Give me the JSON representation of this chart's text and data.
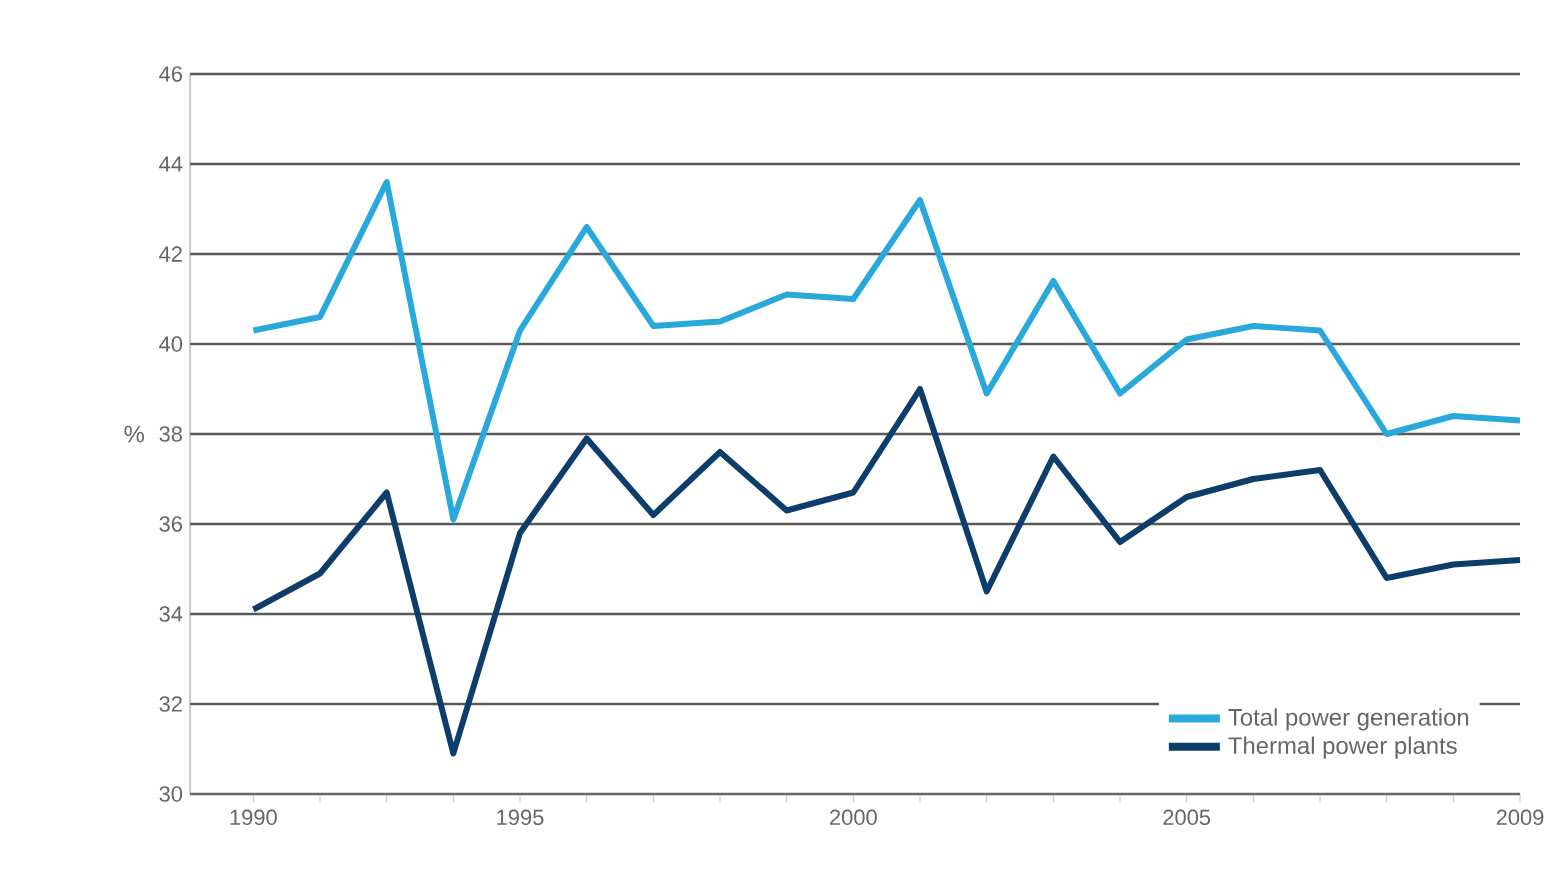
{
  "chart_data": {
    "type": "line",
    "ylabel": "%",
    "categories": [
      "1990",
      null,
      null,
      null,
      "1995",
      null,
      null,
      null,
      null,
      "2000",
      null,
      null,
      null,
      null,
      "2005",
      null,
      null,
      null,
      null,
      "2009"
    ],
    "series": [
      {
        "name": "Total power generation",
        "color": "#29a8dc",
        "values": [
          40.3,
          40.6,
          43.6,
          36.1,
          40.3,
          42.6,
          40.4,
          40.5,
          41.1,
          41.0,
          43.2,
          38.9,
          41.4,
          38.9,
          40.1,
          40.4,
          40.3,
          38.0,
          38.4,
          38.3
        ]
      },
      {
        "name": "Thermal power plants",
        "color": "#0d3d6b",
        "values": [
          34.1,
          34.9,
          36.7,
          30.9,
          35.8,
          37.9,
          36.2,
          37.6,
          36.3,
          36.7,
          39.0,
          34.5,
          37.5,
          35.6,
          36.6,
          37.0,
          37.2,
          34.8,
          35.1,
          35.2
        ]
      }
    ],
    "ylim": [
      30,
      46
    ],
    "yticks": [
      30,
      32,
      34,
      36,
      38,
      40,
      42,
      44,
      46
    ],
    "grid": "y",
    "legend": "bottom right",
    "marker": "none",
    "line_style": "solid"
  }
}
